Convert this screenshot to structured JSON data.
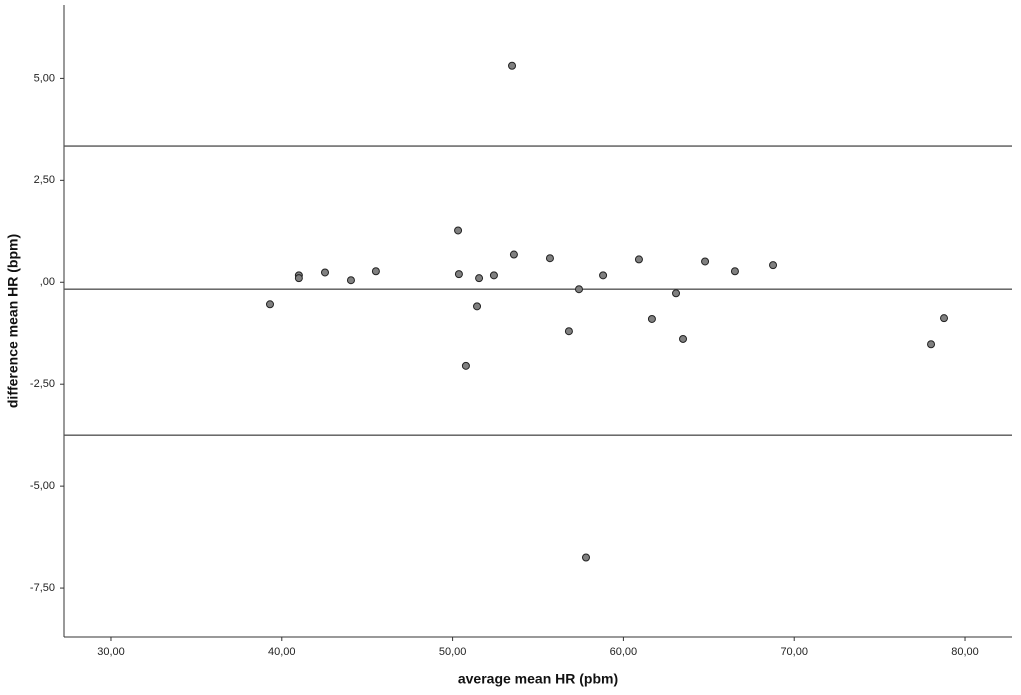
{
  "chart_data": {
    "type": "scatter",
    "xlabel": "average mean HR (pbm)",
    "ylabel": "difference mean HR (bpm)",
    "xlim": [
      27.25,
      82.75
    ],
    "ylim": [
      -8.7,
      6.8
    ],
    "xticks": [
      {
        "value": 30,
        "label": "30,00"
      },
      {
        "value": 40,
        "label": "40,00"
      },
      {
        "value": 50,
        "label": "50,00"
      },
      {
        "value": 60,
        "label": "60,00"
      },
      {
        "value": 70,
        "label": "70,00"
      },
      {
        "value": 80,
        "label": "80,00"
      }
    ],
    "yticks": [
      {
        "value": -7.5,
        "label": "-7,50"
      },
      {
        "value": -5,
        "label": "-5,00"
      },
      {
        "value": -2.5,
        "label": "-2,50"
      },
      {
        "value": 0,
        "label": ",00"
      },
      {
        "value": 2.5,
        "label": "2,50"
      },
      {
        "value": 5,
        "label": "5,00"
      }
    ],
    "hlines": [
      3.34,
      -0.17,
      -3.75
    ],
    "color": "#808080",
    "x": [
      39.31,
      41.0,
      41.0,
      42.53,
      44.05,
      45.51,
      50.32,
      50.37,
      50.78,
      51.43,
      51.55,
      52.42,
      53.48,
      53.59,
      55.7,
      56.81,
      57.4,
      57.81,
      58.81,
      60.91,
      61.67,
      63.08,
      63.49,
      64.78,
      66.53,
      68.76,
      78.01,
      78.77
    ],
    "values": [
      -0.54,
      0.17,
      0.1,
      0.24,
      0.05,
      0.27,
      1.27,
      0.2,
      -2.05,
      -0.59,
      0.1,
      0.17,
      5.31,
      0.68,
      0.59,
      -1.2,
      -0.17,
      -6.75,
      0.17,
      0.56,
      -0.9,
      -0.27,
      -1.39,
      0.51,
      0.27,
      0.42,
      -1.52,
      -0.88
    ]
  }
}
